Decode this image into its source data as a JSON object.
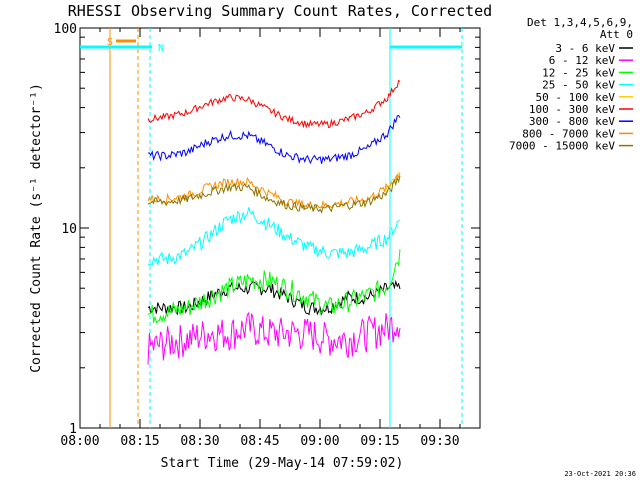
{
  "chart_data": {
    "type": "line",
    "title": "RHESSI Observing Summary Count Rates, Corrected",
    "xlabel": "Start Time (29-May-14 07:59:02)",
    "ylabel": "Corrected Count Rate (s⁻¹ detector⁻¹)",
    "y_scale": "log",
    "ylim": [
      1,
      100
    ],
    "y_ticks": [
      {
        "v": 1,
        "label": "1"
      },
      {
        "v": 10,
        "label": "10"
      },
      {
        "v": 100,
        "label": "100"
      }
    ],
    "xlim_minutes": [
      0,
      100
    ],
    "x_ticks": [
      {
        "m": 0,
        "label": "08:00"
      },
      {
        "m": 15,
        "label": "08:15"
      },
      {
        "m": 30,
        "label": "08:30"
      },
      {
        "m": 45,
        "label": "08:45"
      },
      {
        "m": 60,
        "label": "09:00"
      },
      {
        "m": 75,
        "label": "09:15"
      },
      {
        "m": 90,
        "label": "09:30"
      }
    ],
    "legend_header": [
      "Det 1,3,4,5,6,9,",
      "Att 0"
    ],
    "legend_position": "top-right",
    "series": [
      {
        "name": "3 - 6 keV",
        "color": "#000000",
        "x": [
          17,
          22,
          27,
          32,
          37,
          42,
          47,
          52,
          57,
          62,
          67,
          72,
          77,
          80
        ],
        "y": [
          4,
          4,
          4,
          4.5,
          5,
          5,
          5,
          4.5,
          4,
          4,
          4.5,
          4.5,
          5,
          5
        ]
      },
      {
        "name": "6 - 12 keV",
        "color": "#ff00ff",
        "x": [
          17,
          22,
          27,
          32,
          37,
          42,
          47,
          52,
          57,
          62,
          67,
          72,
          77,
          80
        ],
        "y": [
          2.5,
          2.7,
          2.8,
          3,
          3,
          3.2,
          3,
          3,
          3,
          2.8,
          2.8,
          3,
          3.2,
          3.5
        ]
      },
      {
        "name": "12 - 25 keV",
        "color": "#00ff00",
        "x": [
          17,
          22,
          27,
          32,
          37,
          42,
          47,
          52,
          57,
          62,
          67,
          72,
          77,
          80
        ],
        "y": [
          3.7,
          3.8,
          4,
          4.5,
          5,
          5.5,
          5.5,
          5,
          4.5,
          4,
          4.3,
          4.6,
          5.2,
          7.5
        ]
      },
      {
        "name": "25 - 50 keV",
        "color": "#00ffff",
        "x": [
          17,
          22,
          27,
          32,
          37,
          42,
          47,
          52,
          57,
          62,
          67,
          72,
          77,
          80
        ],
        "y": [
          7,
          7,
          7.5,
          9,
          11,
          12,
          10.5,
          9,
          8,
          7.5,
          7.5,
          8,
          9,
          11
        ]
      },
      {
        "name": "50 - 100 keV",
        "color": "#ffcc00",
        "x": [
          76,
          77,
          78,
          79,
          80
        ],
        "y": [
          15,
          16,
          17,
          18,
          20
        ]
      },
      {
        "name": "100 - 300 keV",
        "color": "#ff0000",
        "x": [
          17,
          22,
          27,
          32,
          37,
          42,
          47,
          52,
          57,
          62,
          67,
          72,
          77,
          80
        ],
        "y": [
          35,
          36,
          38,
          42,
          45,
          44,
          39,
          35,
          33,
          33,
          35,
          38,
          45,
          55
        ]
      },
      {
        "name": "300 - 800 keV",
        "color": "#0000ff",
        "x": [
          17,
          22,
          27,
          32,
          37,
          42,
          47,
          52,
          57,
          62,
          67,
          72,
          77,
          80
        ],
        "y": [
          23,
          23,
          24,
          27,
          29,
          29,
          26,
          23,
          22,
          22,
          23,
          25,
          30,
          37
        ]
      },
      {
        "name": "800 - 7000 keV",
        "color": "#ff8c00",
        "x": [
          17,
          22,
          27,
          32,
          37,
          42,
          47,
          52,
          57,
          62,
          67,
          72,
          77,
          80
        ],
        "y": [
          14,
          14,
          14.5,
          16,
          17,
          17,
          15,
          13.5,
          13,
          13,
          13.5,
          14,
          16,
          19
        ]
      },
      {
        "name": "7000 - 15000 keV",
        "color": "#8b7300",
        "x": [
          17,
          22,
          27,
          32,
          37,
          42,
          47,
          52,
          57,
          62,
          67,
          72,
          77,
          80
        ],
        "y": [
          13.5,
          13.5,
          14,
          15,
          16,
          16,
          14,
          13,
          12.5,
          12.5,
          13,
          13.5,
          15,
          18
        ]
      }
    ],
    "markers": [
      {
        "label": "S",
        "color": "#ff8c00",
        "bar_minutes": [
          9,
          14
        ]
      },
      {
        "label": "N",
        "color": "#00ffff",
        "bar_minutes": [
          0,
          18
        ]
      }
    ],
    "timestamp": "23-Oct-2021 20:36"
  }
}
